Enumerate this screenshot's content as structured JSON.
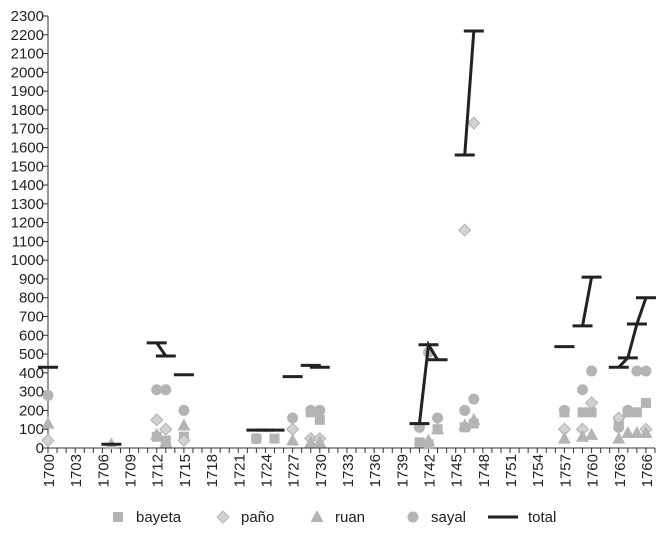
{
  "chart_data": {
    "type": "scatter",
    "title": "",
    "xlabel": "",
    "ylabel": "",
    "ylim": [
      0,
      2300
    ],
    "yticks": [
      0,
      100,
      200,
      300,
      400,
      500,
      600,
      700,
      800,
      900,
      1000,
      1100,
      1200,
      1300,
      1400,
      1500,
      1600,
      1700,
      1800,
      1900,
      2000,
      2100,
      2200,
      2300
    ],
    "xlim": [
      1700,
      1767
    ],
    "xticks": [
      1700,
      1703,
      1706,
      1709,
      1712,
      1715,
      1718,
      1721,
      1724,
      1727,
      1730,
      1733,
      1736,
      1739,
      1742,
      1745,
      1748,
      1751,
      1754,
      1757,
      1760,
      1763,
      1766
    ],
    "grid": false,
    "legend": "bottom",
    "series": [
      {
        "name": "bayeta",
        "marker": "square",
        "color": "#b4b4b4",
        "points": [
          [
            1712,
            60
          ],
          [
            1713,
            40
          ],
          [
            1715,
            60
          ],
          [
            1723,
            50
          ],
          [
            1725,
            50
          ],
          [
            1729,
            190
          ],
          [
            1730,
            150
          ],
          [
            1741,
            30
          ],
          [
            1742,
            20
          ],
          [
            1743,
            100
          ],
          [
            1746,
            110
          ],
          [
            1747,
            130
          ],
          [
            1757,
            190
          ],
          [
            1759,
            190
          ],
          [
            1760,
            190
          ],
          [
            1763,
            130
          ],
          [
            1764,
            190
          ],
          [
            1765,
            190
          ],
          [
            1766,
            240
          ]
        ]
      },
      {
        "name": "paño",
        "marker": "diamond",
        "color": "#d2d2d2",
        "points": [
          [
            1700,
            40
          ],
          [
            1712,
            150
          ],
          [
            1713,
            100
          ],
          [
            1715,
            40
          ],
          [
            1727,
            100
          ],
          [
            1729,
            50
          ],
          [
            1730,
            50
          ],
          [
            1746,
            1160
          ],
          [
            1747,
            1730
          ],
          [
            1757,
            100
          ],
          [
            1759,
            100
          ],
          [
            1760,
            240
          ],
          [
            1763,
            160
          ],
          [
            1766,
            100
          ]
        ]
      },
      {
        "name": "ruan",
        "marker": "triangle",
        "color": "#b4b4b4",
        "points": [
          [
            1700,
            130
          ],
          [
            1707,
            20
          ],
          [
            1712,
            70
          ],
          [
            1713,
            30
          ],
          [
            1715,
            120
          ],
          [
            1727,
            40
          ],
          [
            1729,
            30
          ],
          [
            1730,
            30
          ],
          [
            1742,
            40
          ],
          [
            1743,
            100
          ],
          [
            1746,
            120
          ],
          [
            1747,
            150
          ],
          [
            1757,
            50
          ],
          [
            1759,
            60
          ],
          [
            1760,
            70
          ],
          [
            1763,
            50
          ],
          [
            1764,
            80
          ],
          [
            1765,
            80
          ],
          [
            1766,
            80
          ]
        ]
      },
      {
        "name": "sayal",
        "marker": "circle",
        "color": "#b4b4b4",
        "points": [
          [
            1700,
            280
          ],
          [
            1712,
            310
          ],
          [
            1713,
            310
          ],
          [
            1715,
            200
          ],
          [
            1723,
            50
          ],
          [
            1727,
            160
          ],
          [
            1729,
            200
          ],
          [
            1730,
            200
          ],
          [
            1741,
            110
          ],
          [
            1742,
            510
          ],
          [
            1743,
            160
          ],
          [
            1746,
            200
          ],
          [
            1747,
            260
          ],
          [
            1757,
            200
          ],
          [
            1759,
            310
          ],
          [
            1760,
            410
          ],
          [
            1763,
            110
          ],
          [
            1764,
            200
          ],
          [
            1765,
            410
          ],
          [
            1766,
            410
          ]
        ]
      },
      {
        "name": "total",
        "marker": "line",
        "color": "#222222",
        "segments": [
          [
            [
              1700,
              430
            ]
          ],
          [
            [
              1707,
              20
            ]
          ],
          [
            [
              1712,
              560
            ],
            [
              1713,
              490
            ]
          ],
          [
            [
              1715,
              390
            ]
          ],
          [
            [
              1723,
              95
            ],
            [
              1725,
              95
            ]
          ],
          [
            [
              1727,
              380
            ]
          ],
          [
            [
              1729,
              440
            ],
            [
              1730,
              430
            ]
          ],
          [
            [
              1741,
              130
            ],
            [
              1742,
              550
            ],
            [
              1743,
              470
            ]
          ],
          [
            [
              1746,
              1560
            ],
            [
              1747,
              2220
            ]
          ],
          [
            [
              1757,
              540
            ]
          ],
          [
            [
              1759,
              650
            ],
            [
              1760,
              910
            ]
          ],
          [
            [
              1763,
              430
            ],
            [
              1764,
              480
            ],
            [
              1765,
              660
            ],
            [
              1766,
              800
            ]
          ]
        ]
      }
    ]
  }
}
